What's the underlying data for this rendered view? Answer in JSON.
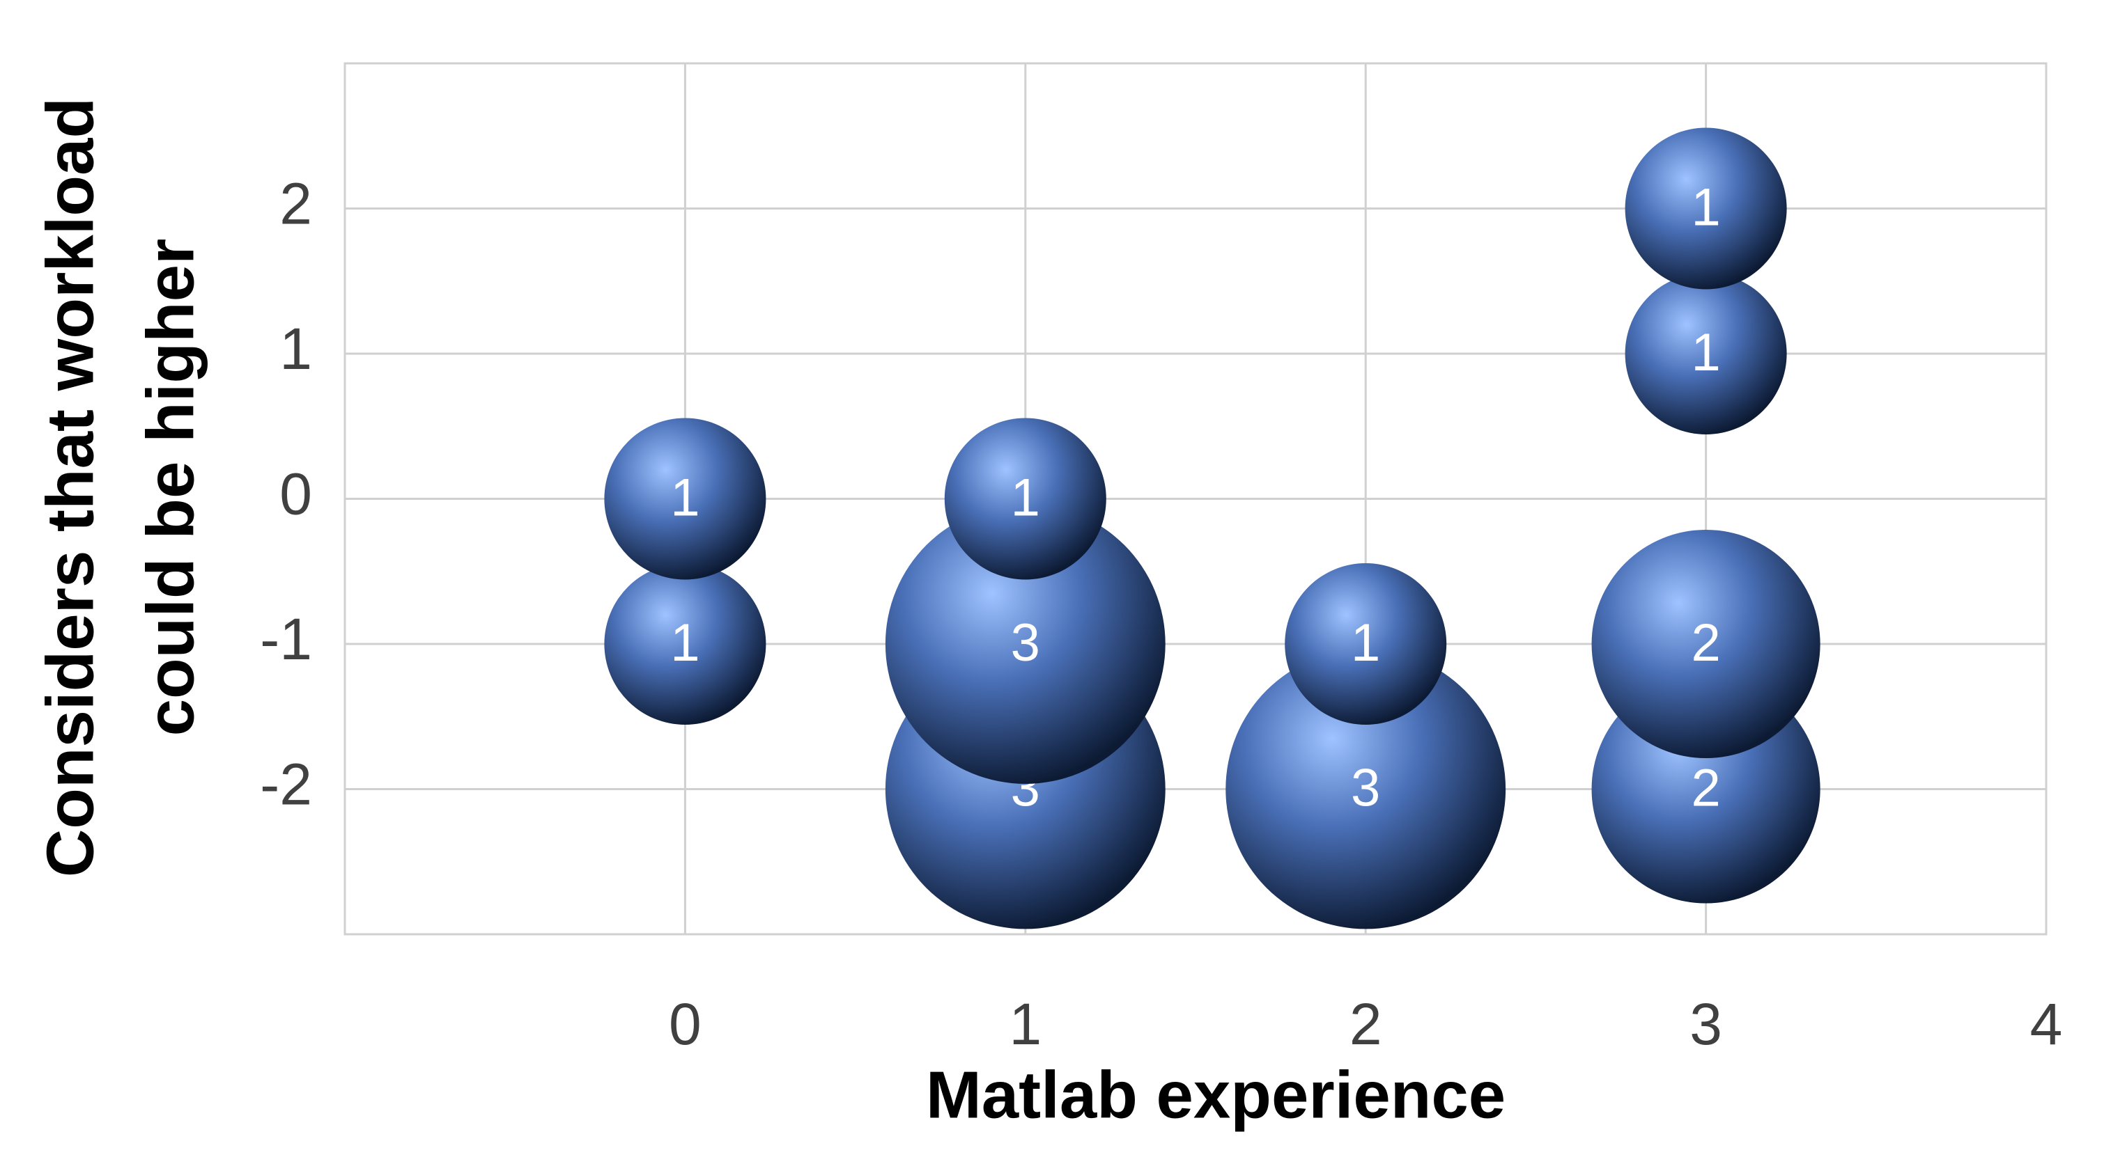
{
  "chart_data": {
    "type": "bubble",
    "xlabel": "Matlab experience",
    "ylabel": [
      "Considers that workload",
      "could be higher"
    ],
    "x": [
      0,
      0,
      1,
      1,
      1,
      2,
      2,
      3,
      3,
      3,
      3
    ],
    "y": [
      0,
      -1,
      0,
      -1,
      -2,
      -1,
      -2,
      2,
      1,
      -1,
      -2
    ],
    "sizes": [
      1,
      1,
      1,
      3,
      3,
      1,
      3,
      1,
      1,
      2,
      2
    ],
    "color": "#4a70b8",
    "xlim": [
      -1,
      4
    ],
    "xticks": [
      0,
      1,
      2,
      3,
      4
    ],
    "ylim": [
      -3,
      3
    ],
    "yticks": [
      -2,
      -1,
      0,
      1,
      2
    ],
    "grid": true
  }
}
